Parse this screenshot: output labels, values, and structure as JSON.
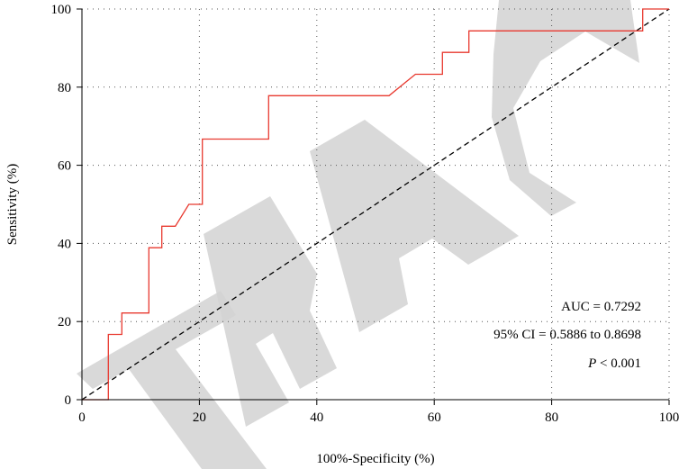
{
  "chart_data": {
    "type": "line",
    "xlabel": "100%-Specificity (%)",
    "ylabel": "Sensitivity (%)",
    "xlim": [
      0,
      100
    ],
    "ylim": [
      0,
      100
    ],
    "x_ticks": [
      0,
      20,
      40,
      60,
      80,
      100
    ],
    "y_ticks": [
      0,
      20,
      40,
      60,
      80,
      100
    ],
    "x_tick_labels": [
      "0",
      "20",
      "40",
      "60",
      "80",
      "100"
    ],
    "y_tick_labels": [
      "0",
      "20",
      "40",
      "60",
      "80",
      "100"
    ],
    "grid": "dotted",
    "series": [
      {
        "color": "#e8392f",
        "style": "step",
        "x": [
          0,
          4.5,
          4.5,
          6.8,
          6.8,
          11.4,
          11.4,
          13.6,
          13.6,
          15.9,
          15.9,
          18.2,
          18.2,
          20.5,
          20.5,
          31.8,
          31.8,
          52.3,
          52.3,
          56.8,
          56.8,
          61.4,
          61.4,
          65.9,
          65.9,
          95.5,
          95.5,
          100
        ],
        "y": [
          0,
          0,
          16.7,
          16.7,
          22.2,
          22.2,
          38.9,
          38.9,
          44.4,
          44.4,
          44.4,
          50.0,
          50.0,
          50.0,
          66.7,
          66.7,
          77.8,
          77.8,
          77.8,
          83.3,
          83.3,
          83.3,
          88.9,
          88.9,
          94.4,
          94.4,
          100,
          100
        ]
      },
      {
        "color": "#000000",
        "style": "dashed",
        "x": [
          0,
          100
        ],
        "y": [
          0,
          100
        ]
      }
    ],
    "annotations": {
      "auc": "AUC = 0.7292",
      "ci": "95% CI = 0.5886 to 0.8698",
      "p_italic": "P",
      "p_rest": " < 0.001"
    },
    "watermark": "TRAC"
  }
}
